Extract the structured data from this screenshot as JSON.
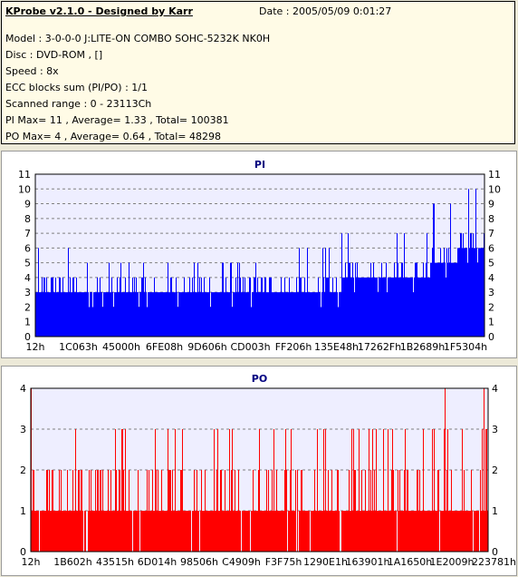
{
  "info": {
    "title": "KProbe v2.1.0 - Designed by Karr",
    "date": "Date : 2005/05/09 0:01:27",
    "lines": [
      "Model : 3-0-0-0 J:LITE-ON COMBO SOHC-5232K NK0H",
      "Disc : DVD-ROM ,  []",
      "Speed : 8x",
      "ECC blocks sum (PI/PO) : 1/1",
      "Scanned range : 0 - 23113Ch",
      "PI Max= 11 , Average= 1.33 , Total= 100381",
      "PO Max= 4 , Average= 0.64 , Total= 48298"
    ]
  },
  "chart_data": [
    {
      "type": "bar",
      "title": "PI",
      "color": "#0000ff",
      "ylim": [
        0,
        11
      ],
      "yticks": [
        "0",
        "1",
        "2",
        "3",
        "4",
        "5",
        "6",
        "7",
        "8",
        "9",
        "10",
        "11"
      ],
      "xtick_labels": [
        "12h",
        "1C063h",
        "45000h",
        "6FE08h",
        "9D606h",
        "CD003h",
        "FF206h",
        "135E48h",
        "17262Fh",
        "1B2689h",
        "1F5304h"
      ],
      "x_range": [
        "0",
        "23113Ch"
      ],
      "grid": true,
      "segments": [
        {
          "from": 0.0,
          "to": 0.08,
          "base": 3,
          "peak": 6
        },
        {
          "from": 0.08,
          "to": 0.55,
          "base": 3,
          "peak": 5
        },
        {
          "from": 0.55,
          "to": 0.68,
          "base": 3,
          "peak": 6
        },
        {
          "from": 0.68,
          "to": 0.8,
          "base": 4,
          "peak": 7
        },
        {
          "from": 0.8,
          "to": 0.88,
          "base": 4,
          "peak": 7
        },
        {
          "from": 0.88,
          "to": 0.94,
          "base": 5,
          "peak": 9
        },
        {
          "from": 0.94,
          "to": 1.0,
          "base": 6,
          "peak": 10
        }
      ]
    },
    {
      "type": "bar",
      "title": "PO",
      "color": "#ff0000",
      "ylim": [
        0,
        4
      ],
      "yticks": [
        "0",
        "1",
        "2",
        "3",
        "4"
      ],
      "xtick_labels": [
        "12h",
        "1B602h",
        "43515h",
        "6D014h",
        "98506h",
        "C4909h",
        "F3F75h",
        "1290E1h",
        "163901h",
        "1A1650h",
        "1E2009h",
        "223781h"
      ],
      "x_range": [
        "0",
        "23113Ch"
      ],
      "grid": true,
      "segments": [
        {
          "from": 0.0,
          "to": 1.0,
          "base": 1,
          "peak": 3
        }
      ],
      "spikes": [
        0.0,
        0.905,
        0.99
      ]
    }
  ]
}
